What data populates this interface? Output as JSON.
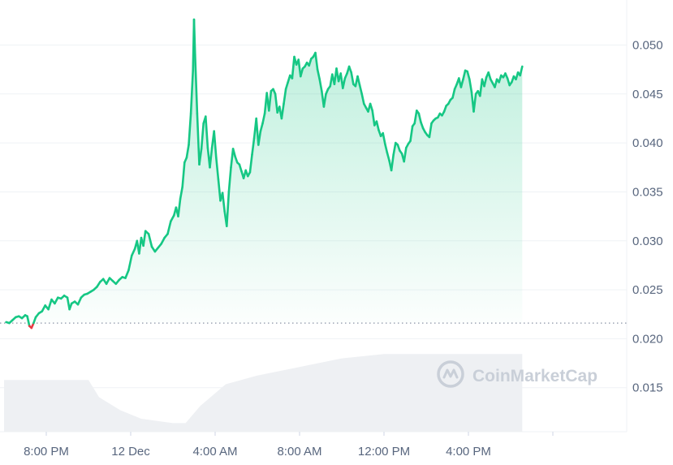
{
  "chart_data": {
    "type": "area",
    "title": "",
    "xlabel": "",
    "ylabel": "",
    "ylim": [
      0.0105,
      0.0546
    ],
    "baseline": 0.0216,
    "y_ticks": [
      0.015,
      0.02,
      0.025,
      0.03,
      0.035,
      0.04,
      0.045,
      0.05
    ],
    "y_tick_labels": [
      "0.015",
      "0.020",
      "0.025",
      "0.030",
      "0.035",
      "0.040",
      "0.045",
      "0.050"
    ],
    "x_range": [
      0,
      29.5
    ],
    "x_ticks": [
      2,
      6,
      10,
      14,
      18,
      22,
      26
    ],
    "x_tick_labels": [
      "8:00 PM",
      "12 Dec",
      "4:00 AM",
      "8:00 AM",
      "12:00 PM",
      "4:00 PM"
    ],
    "x_tick_label_positions": [
      2,
      6,
      10,
      14,
      18,
      22
    ],
    "x_unit": "hours after 6:00 PM, 11 Dec",
    "grid": true,
    "colors": {
      "up": "#16c784",
      "down": "#ea3943",
      "volume": "#eef0f3",
      "grid": "#eff2f5",
      "axis_text": "#58667e"
    },
    "watermark": "CoinMarketCap",
    "series": [
      {
        "values": [
          [
            0.1,
            0.0217
          ],
          [
            0.25,
            0.0216
          ],
          [
            0.4,
            0.0219
          ],
          [
            0.55,
            0.0222
          ],
          [
            0.7,
            0.0223
          ],
          [
            0.85,
            0.0221
          ],
          [
            1.0,
            0.0224
          ],
          [
            1.1,
            0.0223
          ],
          [
            1.2,
            0.0213
          ],
          [
            1.3,
            0.0211
          ],
          [
            1.4,
            0.0216
          ],
          [
            1.5,
            0.0222
          ],
          [
            1.65,
            0.0226
          ],
          [
            1.8,
            0.0228
          ],
          [
            1.95,
            0.0234
          ],
          [
            2.1,
            0.023
          ],
          [
            2.25,
            0.024
          ],
          [
            2.4,
            0.0236
          ],
          [
            2.55,
            0.0242
          ],
          [
            2.7,
            0.0241
          ],
          [
            2.85,
            0.0244
          ],
          [
            3.0,
            0.0242
          ],
          [
            3.1,
            0.023
          ],
          [
            3.2,
            0.0236
          ],
          [
            3.35,
            0.0238
          ],
          [
            3.5,
            0.0235
          ],
          [
            3.65,
            0.0242
          ],
          [
            3.8,
            0.0245
          ],
          [
            3.95,
            0.0246
          ],
          [
            4.1,
            0.0248
          ],
          [
            4.25,
            0.025
          ],
          [
            4.4,
            0.0253
          ],
          [
            4.55,
            0.0258
          ],
          [
            4.7,
            0.0261
          ],
          [
            4.85,
            0.0256
          ],
          [
            5.0,
            0.0262
          ],
          [
            5.15,
            0.0259
          ],
          [
            5.3,
            0.0256
          ],
          [
            5.45,
            0.026
          ],
          [
            5.6,
            0.0263
          ],
          [
            5.75,
            0.0262
          ],
          [
            5.9,
            0.027
          ],
          [
            6.05,
            0.0285
          ],
          [
            6.2,
            0.0292
          ],
          [
            6.3,
            0.03
          ],
          [
            6.4,
            0.0287
          ],
          [
            6.5,
            0.0303
          ],
          [
            6.6,
            0.0295
          ],
          [
            6.7,
            0.031
          ],
          [
            6.85,
            0.0307
          ],
          [
            7.0,
            0.0294
          ],
          [
            7.15,
            0.0289
          ],
          [
            7.3,
            0.0293
          ],
          [
            7.45,
            0.0297
          ],
          [
            7.6,
            0.0303
          ],
          [
            7.75,
            0.0307
          ],
          [
            7.9,
            0.032
          ],
          [
            8.05,
            0.0326
          ],
          [
            8.15,
            0.0334
          ],
          [
            8.25,
            0.0325
          ],
          [
            8.35,
            0.0343
          ],
          [
            8.45,
            0.0355
          ],
          [
            8.55,
            0.038
          ],
          [
            8.65,
            0.0385
          ],
          [
            8.75,
            0.0398
          ],
          [
            8.85,
            0.043
          ],
          [
            8.95,
            0.0474
          ],
          [
            9.0,
            0.0526
          ],
          [
            9.05,
            0.049
          ],
          [
            9.15,
            0.043
          ],
          [
            9.25,
            0.0378
          ],
          [
            9.35,
            0.0394
          ],
          [
            9.45,
            0.042
          ],
          [
            9.55,
            0.0427
          ],
          [
            9.65,
            0.0395
          ],
          [
            9.75,
            0.0375
          ],
          [
            9.85,
            0.0395
          ],
          [
            9.95,
            0.0412
          ],
          [
            10.05,
            0.0385
          ],
          [
            10.15,
            0.0363
          ],
          [
            10.25,
            0.0341
          ],
          [
            10.35,
            0.0349
          ],
          [
            10.45,
            0.033
          ],
          [
            10.55,
            0.0315
          ],
          [
            10.65,
            0.035
          ],
          [
            10.75,
            0.0375
          ],
          [
            10.85,
            0.0394
          ],
          [
            10.95,
            0.0386
          ],
          [
            11.05,
            0.038
          ],
          [
            11.15,
            0.0378
          ],
          [
            11.25,
            0.0371
          ],
          [
            11.35,
            0.0364
          ],
          [
            11.45,
            0.0372
          ],
          [
            11.55,
            0.0366
          ],
          [
            11.65,
            0.037
          ],
          [
            11.75,
            0.0388
          ],
          [
            11.85,
            0.0405
          ],
          [
            11.95,
            0.0425
          ],
          [
            12.05,
            0.0398
          ],
          [
            12.15,
            0.0412
          ],
          [
            12.25,
            0.042
          ],
          [
            12.35,
            0.043
          ],
          [
            12.45,
            0.0451
          ],
          [
            12.55,
            0.0433
          ],
          [
            12.65,
            0.0453
          ],
          [
            12.75,
            0.0455
          ],
          [
            12.85,
            0.045
          ],
          [
            12.95,
            0.0431
          ],
          [
            13.05,
            0.0437
          ],
          [
            13.15,
            0.0425
          ],
          [
            13.25,
            0.044
          ],
          [
            13.35,
            0.0455
          ],
          [
            13.45,
            0.0462
          ],
          [
            13.55,
            0.0469
          ],
          [
            13.65,
            0.0466
          ],
          [
            13.75,
            0.0488
          ],
          [
            13.85,
            0.048
          ],
          [
            13.95,
            0.0485
          ],
          [
            14.05,
            0.0468
          ],
          [
            14.15,
            0.0476
          ],
          [
            14.25,
            0.0478
          ],
          [
            14.35,
            0.0482
          ],
          [
            14.45,
            0.0479
          ],
          [
            14.55,
            0.0486
          ],
          [
            14.65,
            0.0488
          ],
          [
            14.75,
            0.0492
          ],
          [
            14.85,
            0.0475
          ],
          [
            14.95,
            0.0465
          ],
          [
            15.05,
            0.0453
          ],
          [
            15.15,
            0.0437
          ],
          [
            15.25,
            0.045
          ],
          [
            15.35,
            0.0455
          ],
          [
            15.45,
            0.0458
          ],
          [
            15.55,
            0.047
          ],
          [
            15.65,
            0.046
          ],
          [
            15.75,
            0.0476
          ],
          [
            15.85,
            0.0463
          ],
          [
            15.95,
            0.0471
          ],
          [
            16.05,
            0.0456
          ],
          [
            16.15,
            0.0466
          ],
          [
            16.25,
            0.0471
          ],
          [
            16.35,
            0.0478
          ],
          [
            16.45,
            0.0472
          ],
          [
            16.55,
            0.046
          ],
          [
            16.65,
            0.0458
          ],
          [
            16.75,
            0.0468
          ],
          [
            16.85,
            0.0459
          ],
          [
            16.95,
            0.045
          ],
          [
            17.05,
            0.044
          ],
          [
            17.15,
            0.0436
          ],
          [
            17.25,
            0.0432
          ],
          [
            17.35,
            0.044
          ],
          [
            17.45,
            0.0433
          ],
          [
            17.55,
            0.0418
          ],
          [
            17.65,
            0.0422
          ],
          [
            17.75,
            0.0413
          ],
          [
            17.85,
            0.0407
          ],
          [
            17.95,
            0.041
          ],
          [
            18.05,
            0.0399
          ],
          [
            18.15,
            0.039
          ],
          [
            18.25,
            0.0382
          ],
          [
            18.35,
            0.0372
          ],
          [
            18.45,
            0.0388
          ],
          [
            18.55,
            0.04
          ],
          [
            18.65,
            0.0398
          ],
          [
            18.75,
            0.0392
          ],
          [
            18.85,
            0.0389
          ],
          [
            18.95,
            0.0381
          ],
          [
            19.05,
            0.0395
          ],
          [
            19.15,
            0.0399
          ],
          [
            19.25,
            0.0402
          ],
          [
            19.35,
            0.0417
          ],
          [
            19.45,
            0.042
          ],
          [
            19.55,
            0.0433
          ],
          [
            19.65,
            0.043
          ],
          [
            19.75,
            0.0421
          ],
          [
            19.85,
            0.0415
          ],
          [
            19.95,
            0.0411
          ],
          [
            20.05,
            0.0408
          ],
          [
            20.15,
            0.0406
          ],
          [
            20.25,
            0.042
          ],
          [
            20.35,
            0.0423
          ],
          [
            20.45,
            0.0425
          ],
          [
            20.55,
            0.0426
          ],
          [
            20.65,
            0.043
          ],
          [
            20.75,
            0.0428
          ],
          [
            20.85,
            0.0432
          ],
          [
            20.95,
            0.0438
          ],
          [
            21.05,
            0.044
          ],
          [
            21.15,
            0.0444
          ],
          [
            21.25,
            0.0446
          ],
          [
            21.35,
            0.0455
          ],
          [
            21.45,
            0.046
          ],
          [
            21.55,
            0.0466
          ],
          [
            21.65,
            0.0457
          ],
          [
            21.75,
            0.0465
          ],
          [
            21.85,
            0.0474
          ],
          [
            21.95,
            0.0473
          ],
          [
            22.05,
            0.0465
          ],
          [
            22.15,
            0.0452
          ],
          [
            22.25,
            0.0432
          ],
          [
            22.35,
            0.045
          ],
          [
            22.45,
            0.0453
          ],
          [
            22.55,
            0.0448
          ],
          [
            22.65,
            0.0465
          ],
          [
            22.75,
            0.0458
          ],
          [
            22.85,
            0.0467
          ],
          [
            22.95,
            0.0472
          ],
          [
            23.05,
            0.0465
          ],
          [
            23.15,
            0.0461
          ],
          [
            23.25,
            0.0457
          ],
          [
            23.35,
            0.0465
          ],
          [
            23.45,
            0.0462
          ],
          [
            23.55,
            0.0469
          ],
          [
            23.65,
            0.0467
          ],
          [
            23.75,
            0.0471
          ],
          [
            23.85,
            0.0466
          ],
          [
            23.95,
            0.0459
          ],
          [
            24.05,
            0.0462
          ],
          [
            24.15,
            0.0468
          ],
          [
            24.25,
            0.0465
          ],
          [
            24.35,
            0.0472
          ],
          [
            24.45,
            0.0469
          ],
          [
            24.55,
            0.0478
          ]
        ]
      }
    ],
    "volume": [
      [
        0.0,
        0.12
      ],
      [
        4.0,
        0.12
      ],
      [
        4.5,
        0.08
      ],
      [
        5.5,
        0.05
      ],
      [
        6.5,
        0.03
      ],
      [
        8.0,
        0.02
      ],
      [
        8.6,
        0.02
      ],
      [
        9.3,
        0.06
      ],
      [
        10.5,
        0.11
      ],
      [
        12.0,
        0.13
      ],
      [
        14.0,
        0.15
      ],
      [
        16.0,
        0.17
      ],
      [
        18.0,
        0.18
      ],
      [
        24.55,
        0.18
      ]
    ]
  }
}
